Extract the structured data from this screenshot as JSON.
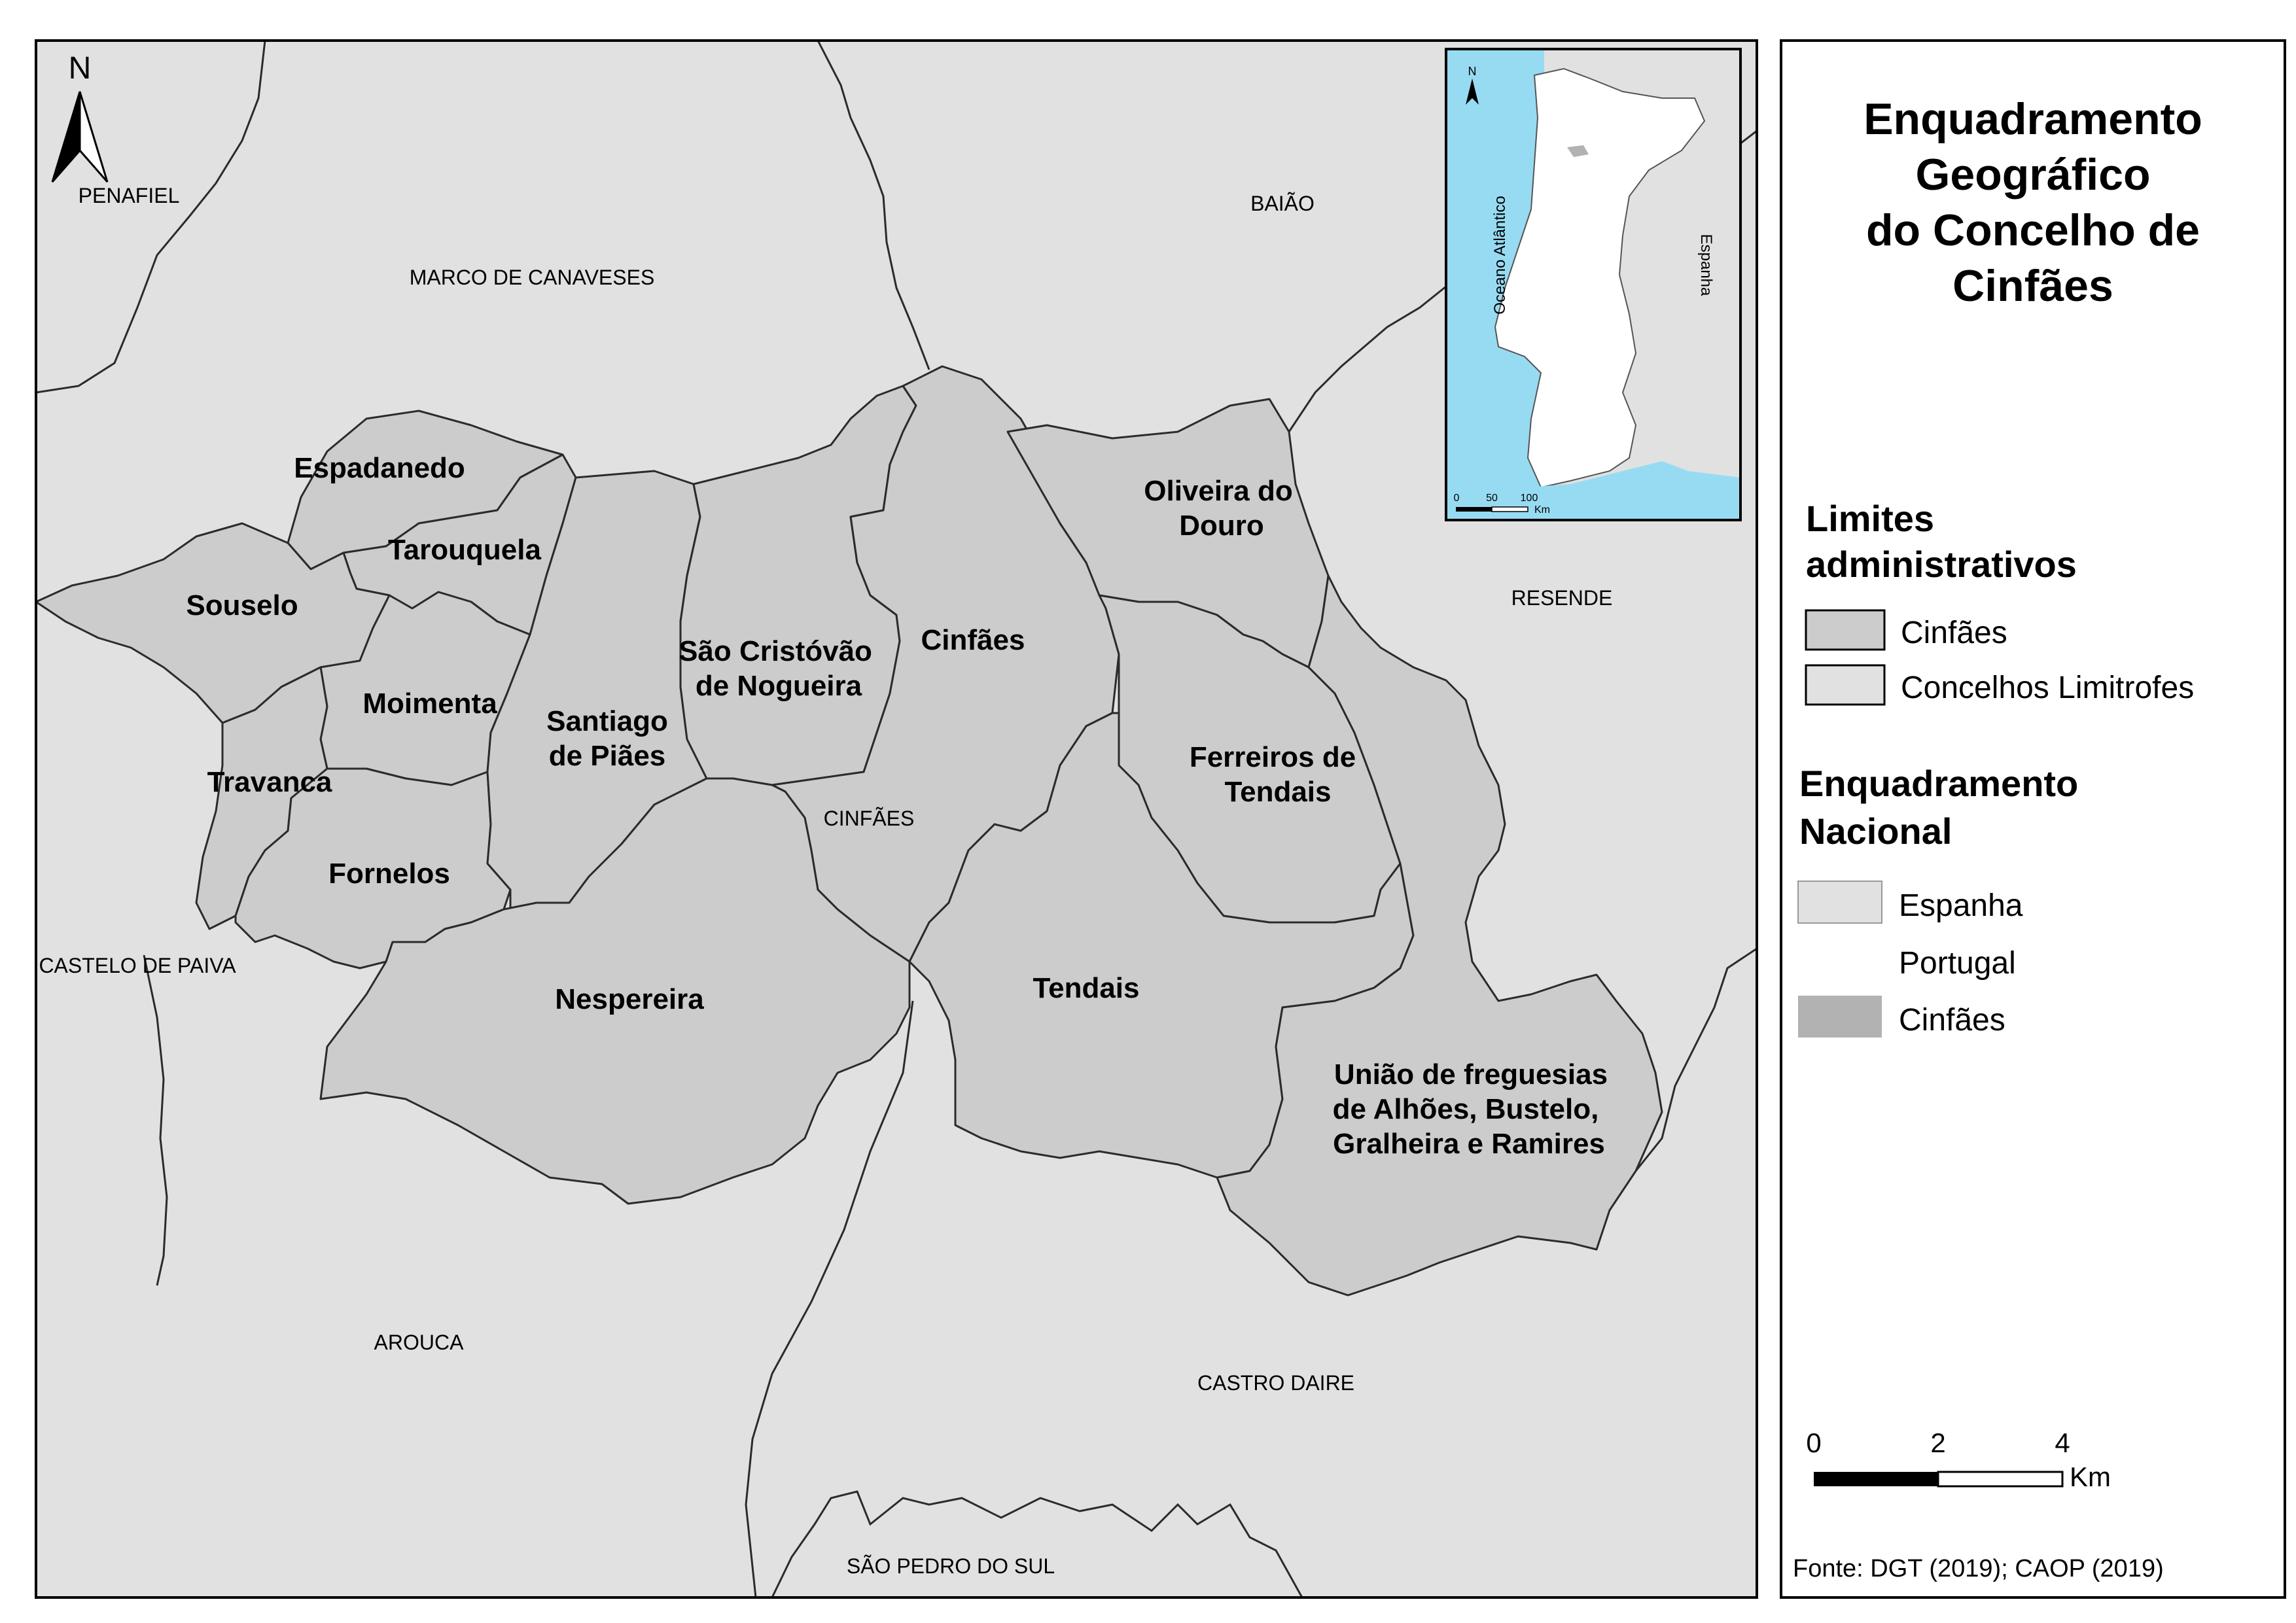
{
  "title_lines": [
    "Enquadramento",
    "Geográfico",
    "do Concelho de",
    "Cinfães"
  ],
  "legend": {
    "section1_lines": [
      "Limites",
      "administrativos"
    ],
    "section1_items": [
      {
        "label": "Cinfães",
        "color": "#cccccc"
      },
      {
        "label": "Concelhos Limitrofes",
        "color": "#e1e1e1"
      }
    ],
    "section2_lines": [
      "Enquadramento",
      "Nacional"
    ],
    "section2_items": [
      {
        "label": "Espanha",
        "color": "#e1e1e1"
      },
      {
        "label": "Portugal",
        "color": "#ffffff"
      },
      {
        "label": "Cinfães",
        "color": "#b2b2b2"
      }
    ]
  },
  "scalebar": {
    "ticks": [
      "0",
      "2",
      "4"
    ],
    "unit": "Km"
  },
  "source": "Fonte: DGT (2019); CAOP (2019)",
  "north_label": "N",
  "neighbors": {
    "penafiel": "PENAFIEL",
    "marco": "MARCO DE CANAVESES",
    "baiao": "BAIÃO",
    "resende": "RESENDE",
    "castelo": "CASTELO DE PAIVA",
    "arouca": "AROUCA",
    "castro": "CASTRO DAIRE",
    "sao_pedro": "SÃO PEDRO DO SUL",
    "cinfaes_center": "CINFÃES"
  },
  "parishes": {
    "espadanedo": [
      "Espadanedo"
    ],
    "tarouquela": [
      "Tarouquela"
    ],
    "souselo": [
      "Souselo"
    ],
    "moimenta": [
      "Moimenta"
    ],
    "travanca": [
      "Travanca"
    ],
    "fornelos": [
      "Fornelos"
    ],
    "santiago": [
      "Santiago",
      "de Piães"
    ],
    "sao_cristovao": [
      "São Cristóvão",
      "de Nogueira"
    ],
    "cinfaes": [
      "Cinfães"
    ],
    "oliveira": [
      "Oliveira do",
      "Douro"
    ],
    "ferreiros": [
      "Ferreiros de",
      "Tendais"
    ],
    "nespereira": [
      "Nespereira"
    ],
    "tendais": [
      "Tendais"
    ],
    "uniao": [
      "União de freguesias",
      "de Alhões, Bustelo,",
      "Gralheira e Ramires"
    ]
  },
  "inset": {
    "ocean": "Oceano Atlântico",
    "spain": "Espanha",
    "north": "N",
    "scale_ticks": [
      "0",
      "50",
      "100"
    ],
    "scale_unit": "Km"
  },
  "colors": {
    "cinfaes_fill": "#cccccc",
    "neighbor_fill": "#e1e1e1",
    "ocean": "#97dbf2",
    "portugal": "#ffffff",
    "cinfaes_inset": "#b2b2b2"
  }
}
